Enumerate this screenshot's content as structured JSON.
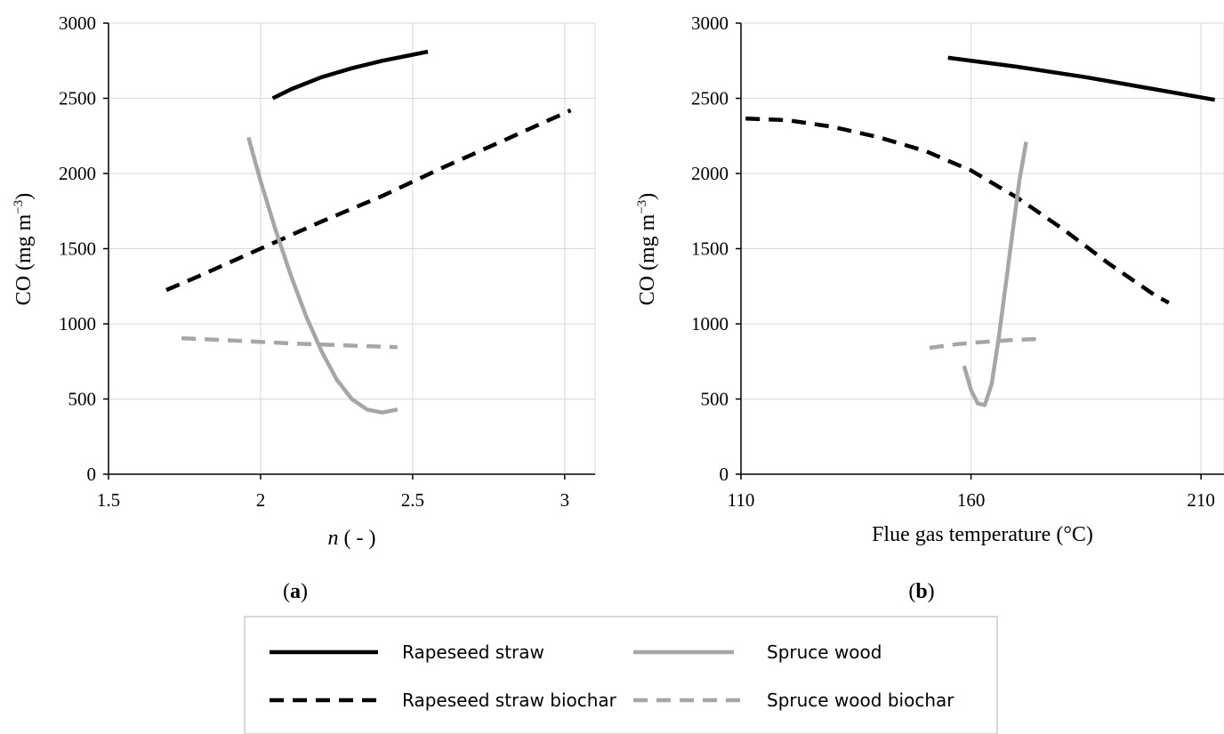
{
  "chart_data": [
    {
      "type": "line",
      "panel_label": "(a)",
      "xlabel": "n ( - )",
      "ylabel": "CO (mg m−3)",
      "xlim": [
        1.5,
        3.1
      ],
      "ylim": [
        0,
        3000
      ],
      "xticks": [
        1.5,
        2,
        2.5,
        3
      ],
      "xtick_labels": [
        "1.5",
        "2",
        "2.5",
        "3"
      ],
      "yticks": [
        0,
        500,
        1000,
        1500,
        2000,
        2500,
        3000
      ],
      "ytick_labels": [
        "0",
        "500",
        "1000",
        "1500",
        "2000",
        "2500",
        "3000"
      ],
      "grid": true,
      "series": [
        {
          "name": "Rapeseed straw",
          "color": "#000000",
          "dashed": false,
          "x": [
            2.04,
            2.1,
            2.2,
            2.3,
            2.4,
            2.5,
            2.55
          ],
          "y": [
            2500,
            2560,
            2640,
            2700,
            2750,
            2790,
            2810
          ]
        },
        {
          "name": "Rapeseed straw biochar",
          "color": "#000000",
          "dashed": true,
          "x": [
            1.69,
            1.8,
            2.0,
            2.2,
            2.4,
            2.6,
            2.8,
            3.02
          ],
          "y": [
            1225,
            1320,
            1500,
            1680,
            1850,
            2040,
            2220,
            2420
          ]
        },
        {
          "name": "Spruce wood",
          "color": "#a6a6a6",
          "dashed": false,
          "x": [
            1.96,
            2.0,
            2.05,
            2.1,
            2.15,
            2.2,
            2.25,
            2.3,
            2.35,
            2.4,
            2.45
          ],
          "y": [
            2240,
            1950,
            1620,
            1320,
            1050,
            820,
            630,
            500,
            430,
            410,
            430
          ]
        },
        {
          "name": "Spruce wood biochar",
          "color": "#a6a6a6",
          "dashed": true,
          "x": [
            1.74,
            1.9,
            2.1,
            2.3,
            2.45
          ],
          "y": [
            905,
            890,
            870,
            855,
            845
          ]
        }
      ]
    },
    {
      "type": "line",
      "panel_label": "(b)",
      "xlabel": "Flue gas temperature (°C)",
      "ylabel": "CO (mg m−3)",
      "xlim": [
        110,
        215
      ],
      "ylim": [
        0,
        3000
      ],
      "xticks": [
        110,
        160,
        210
      ],
      "xtick_labels": [
        "110",
        "160",
        "210"
      ],
      "yticks": [
        0,
        500,
        1000,
        1500,
        2000,
        2500,
        3000
      ],
      "ytick_labels": [
        "0",
        "500",
        "1000",
        "1500",
        "2000",
        "2500",
        "3000"
      ],
      "grid": true,
      "series": [
        {
          "name": "Rapeseed straw",
          "color": "#000000",
          "dashed": false,
          "x": [
            155,
            170,
            185,
            200,
            213
          ],
          "y": [
            2770,
            2710,
            2640,
            2560,
            2490
          ]
        },
        {
          "name": "Rapeseed straw biochar",
          "color": "#000000",
          "dashed": true,
          "x": [
            111,
            120,
            130,
            140,
            150,
            160,
            170,
            180,
            190,
            200,
            203
          ],
          "y": [
            2365,
            2355,
            2310,
            2240,
            2150,
            2020,
            1840,
            1630,
            1400,
            1190,
            1140
          ]
        },
        {
          "name": "Spruce wood",
          "color": "#a6a6a6",
          "dashed": false,
          "x": [
            158.5,
            160,
            161.5,
            163,
            164.5,
            166,
            167.5,
            169,
            170.5,
            172
          ],
          "y": [
            720,
            560,
            470,
            460,
            600,
            900,
            1250,
            1600,
            1950,
            2210
          ]
        },
        {
          "name": "Spruce wood biochar",
          "color": "#a6a6a6",
          "dashed": true,
          "x": [
            151,
            157,
            163,
            169,
            175
          ],
          "y": [
            840,
            865,
            880,
            893,
            900
          ]
        }
      ]
    }
  ],
  "legend": {
    "items": [
      {
        "label": "Rapeseed straw",
        "color": "#000000",
        "dashed": false
      },
      {
        "label": "Spruce wood",
        "color": "#a6a6a6",
        "dashed": false
      },
      {
        "label": "Rapeseed straw biochar",
        "color": "#000000",
        "dashed": true
      },
      {
        "label": "Spruce wood biochar",
        "color": "#a6a6a6",
        "dashed": true
      }
    ]
  }
}
